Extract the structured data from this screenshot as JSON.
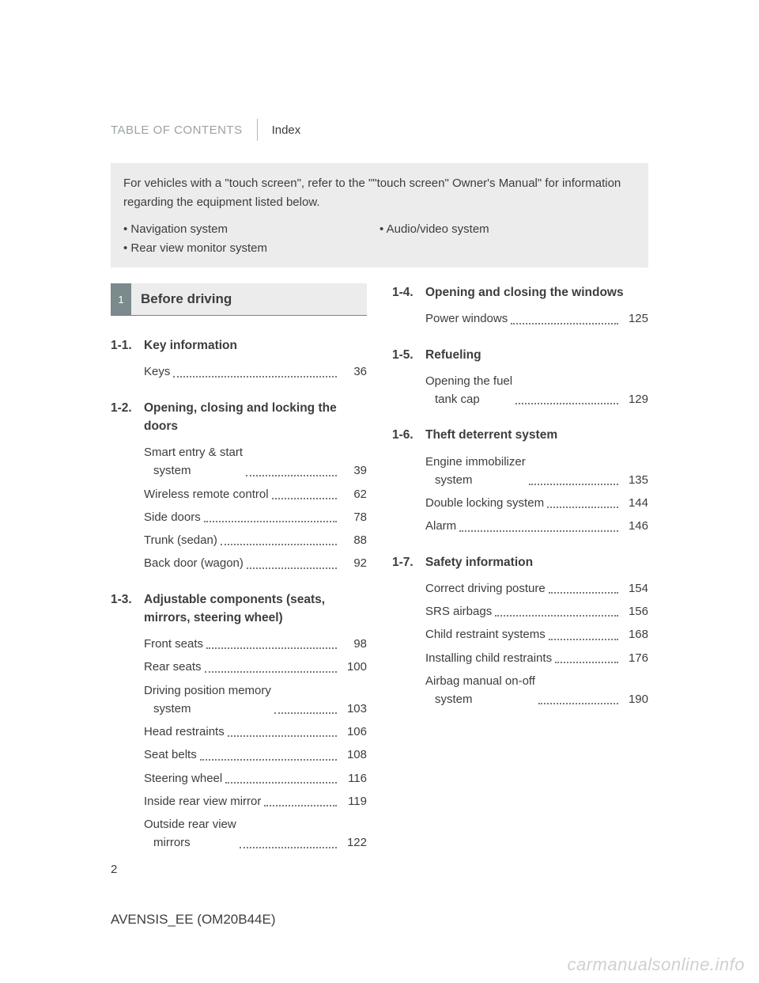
{
  "header": {
    "toc_label": "TABLE OF CONTENTS",
    "index_label": "Index"
  },
  "note": {
    "text": "For vehicles with a \"touch screen\", refer to the \"\"touch screen\" Owner's Manual\" for information regarding the equipment listed below.",
    "left_items": [
      "•  Navigation system",
      "•  Rear view monitor system"
    ],
    "right_items": [
      "•  Audio/video system"
    ]
  },
  "chapter": {
    "number": "1",
    "title": "Before driving"
  },
  "left_sections": [
    {
      "num": "1-1.",
      "title": "Key information",
      "entries": [
        {
          "label": "Keys",
          "page": "36"
        }
      ]
    },
    {
      "num": "1-2.",
      "title": "Opening, closing and locking the doors",
      "entries": [
        {
          "label": "Smart entry & start",
          "cont": "system",
          "page": "39"
        },
        {
          "label": "Wireless remote control",
          "page": "62"
        },
        {
          "label": "Side doors",
          "page": "78"
        },
        {
          "label": "Trunk (sedan)",
          "page": "88"
        },
        {
          "label": "Back door (wagon)",
          "page": "92"
        }
      ]
    },
    {
      "num": "1-3.",
      "title": "Adjustable components (seats, mirrors, steering wheel)",
      "entries": [
        {
          "label": "Front seats",
          "page": "98"
        },
        {
          "label": "Rear seats",
          "page": "100"
        },
        {
          "label": "Driving position memory",
          "cont": "system",
          "page": "103"
        },
        {
          "label": "Head restraints",
          "page": "106"
        },
        {
          "label": "Seat belts",
          "page": "108"
        },
        {
          "label": "Steering wheel",
          "page": "116"
        },
        {
          "label": "Inside rear view mirror",
          "page": "119"
        },
        {
          "label": "Outside rear view",
          "cont": "mirrors",
          "page": "122"
        }
      ]
    }
  ],
  "right_sections": [
    {
      "num": "1-4.",
      "title": "Opening and closing the windows",
      "entries": [
        {
          "label": "Power windows",
          "page": "125"
        }
      ]
    },
    {
      "num": "1-5.",
      "title": "Refueling",
      "entries": [
        {
          "label": "Opening the fuel",
          "cont": "tank cap",
          "page": "129"
        }
      ]
    },
    {
      "num": "1-6.",
      "title": "Theft deterrent system",
      "entries": [
        {
          "label": "Engine immobilizer",
          "cont": "system",
          "page": "135"
        },
        {
          "label": "Double locking system",
          "page": "144"
        },
        {
          "label": "Alarm",
          "page": "146"
        }
      ]
    },
    {
      "num": "1-7.",
      "title": "Safety information",
      "entries": [
        {
          "label": "Correct driving posture",
          "page": "154"
        },
        {
          "label": "SRS airbags",
          "page": "156"
        },
        {
          "label": "Child restraint systems",
          "page": "168"
        },
        {
          "label": "Installing child restraints",
          "page": "176"
        },
        {
          "label": "Airbag manual on-off",
          "cont": "system",
          "page": "190"
        }
      ]
    }
  ],
  "footer": {
    "page_number": "2",
    "doc_code": "AVENSIS_EE (OM20B44E)",
    "watermark": "carmanualsonline.info"
  }
}
